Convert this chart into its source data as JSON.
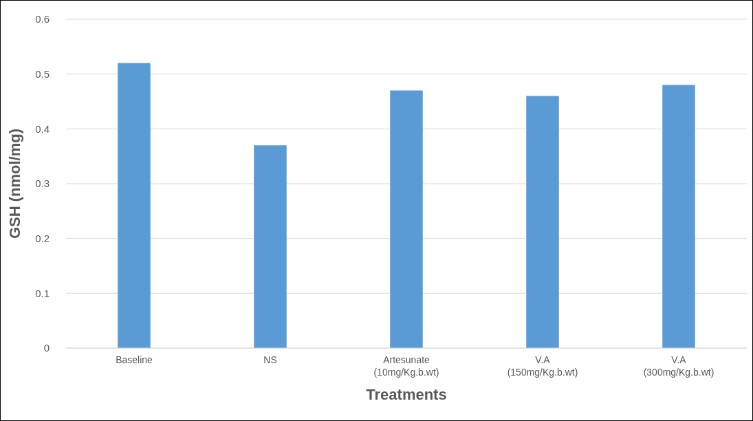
{
  "chart_data": {
    "type": "bar",
    "xlabel": "Treatments",
    "ylabel": "GSH (nmol/mg)",
    "categories": [
      "Baseline",
      "NS",
      "Artesunate (10mg/Kg.b.wt)",
      "V.A (150mg/Kg.b.wt)",
      "V.A (300mg/Kg.b.wt)"
    ],
    "values": [
      0.52,
      0.37,
      0.47,
      0.46,
      0.48
    ],
    "color": "#5b9bd5",
    "ylim": [
      0,
      0.6
    ],
    "yticks": [
      0,
      0.1,
      0.2,
      0.3,
      0.4,
      0.5,
      0.6
    ],
    "grid": "y"
  }
}
